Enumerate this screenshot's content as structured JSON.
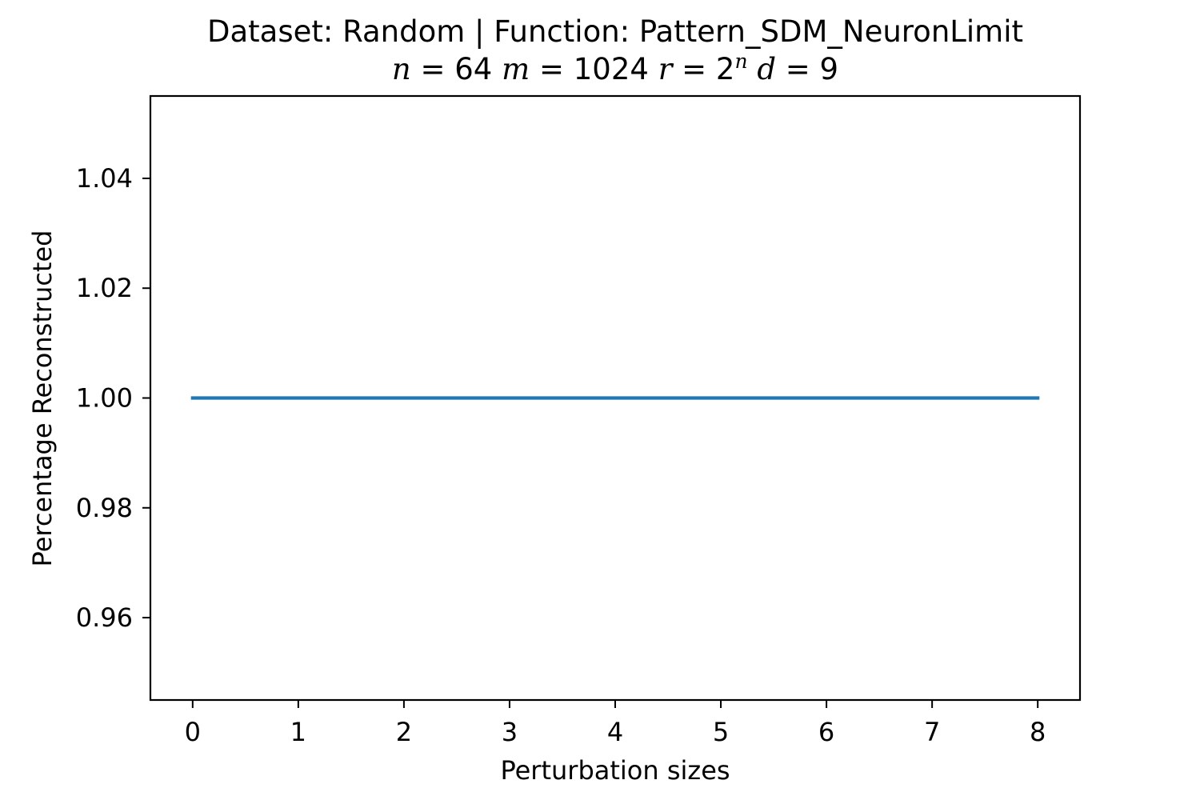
{
  "chart_data": {
    "type": "line",
    "title": "Dataset: Random | Function: Pattern_SDM_NeuronLimit",
    "subtitle": {
      "n_var": "n",
      "n_val": "64",
      "m_var": "m",
      "m_val": "1024",
      "r_var": "r",
      "r_base": "2",
      "r_exp": "n",
      "d_var": "d",
      "d_val": "9"
    },
    "xlabel": "Perturbation sizes",
    "ylabel": "Percentage Reconstructed",
    "xlim": [
      -0.4,
      8.4
    ],
    "ylim": [
      0.945,
      1.055
    ],
    "xticks": [
      0,
      1,
      2,
      3,
      4,
      5,
      6,
      7,
      8
    ],
    "yticks": [
      0.96,
      0.98,
      1.0,
      1.02,
      1.04
    ],
    "ytick_labels": [
      "0.96",
      "0.98",
      "1.00",
      "1.02",
      "1.04"
    ],
    "grid": false,
    "series": [
      {
        "color": "#1f77b4",
        "x": [
          0,
          1,
          2,
          3,
          4,
          5,
          6,
          7,
          8
        ],
        "values": [
          1.0,
          1.0,
          1.0,
          1.0,
          1.0,
          1.0,
          1.0,
          1.0,
          1.0
        ]
      }
    ]
  }
}
